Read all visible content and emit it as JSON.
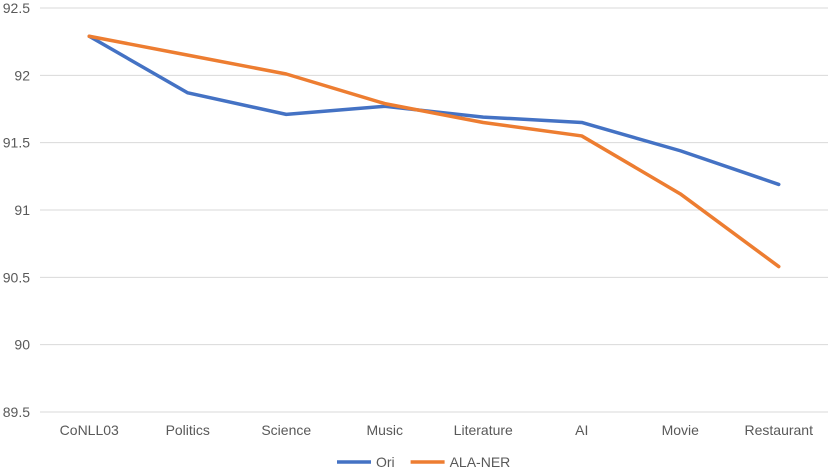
{
  "chart_data": {
    "type": "line",
    "categories": [
      "CoNLL03",
      "Politics",
      "Science",
      "Music",
      "Literature",
      "AI",
      "Movie",
      "Restaurant"
    ],
    "series": [
      {
        "name": "Ori",
        "color": "#4472C4",
        "values": [
          92.29,
          91.87,
          91.71,
          91.77,
          91.69,
          91.65,
          91.44,
          91.19
        ]
      },
      {
        "name": "ALA-NER",
        "color": "#ED7D31",
        "values": [
          92.29,
          92.15,
          92.01,
          91.79,
          91.65,
          91.55,
          91.12,
          90.58
        ]
      }
    ],
    "ylim": [
      89.5,
      92.5
    ],
    "yticks": [
      "89.5",
      "90",
      "90.5",
      "91",
      "91.5",
      "92",
      "92.5"
    ],
    "grid": true,
    "legend_position": "bottom"
  }
}
